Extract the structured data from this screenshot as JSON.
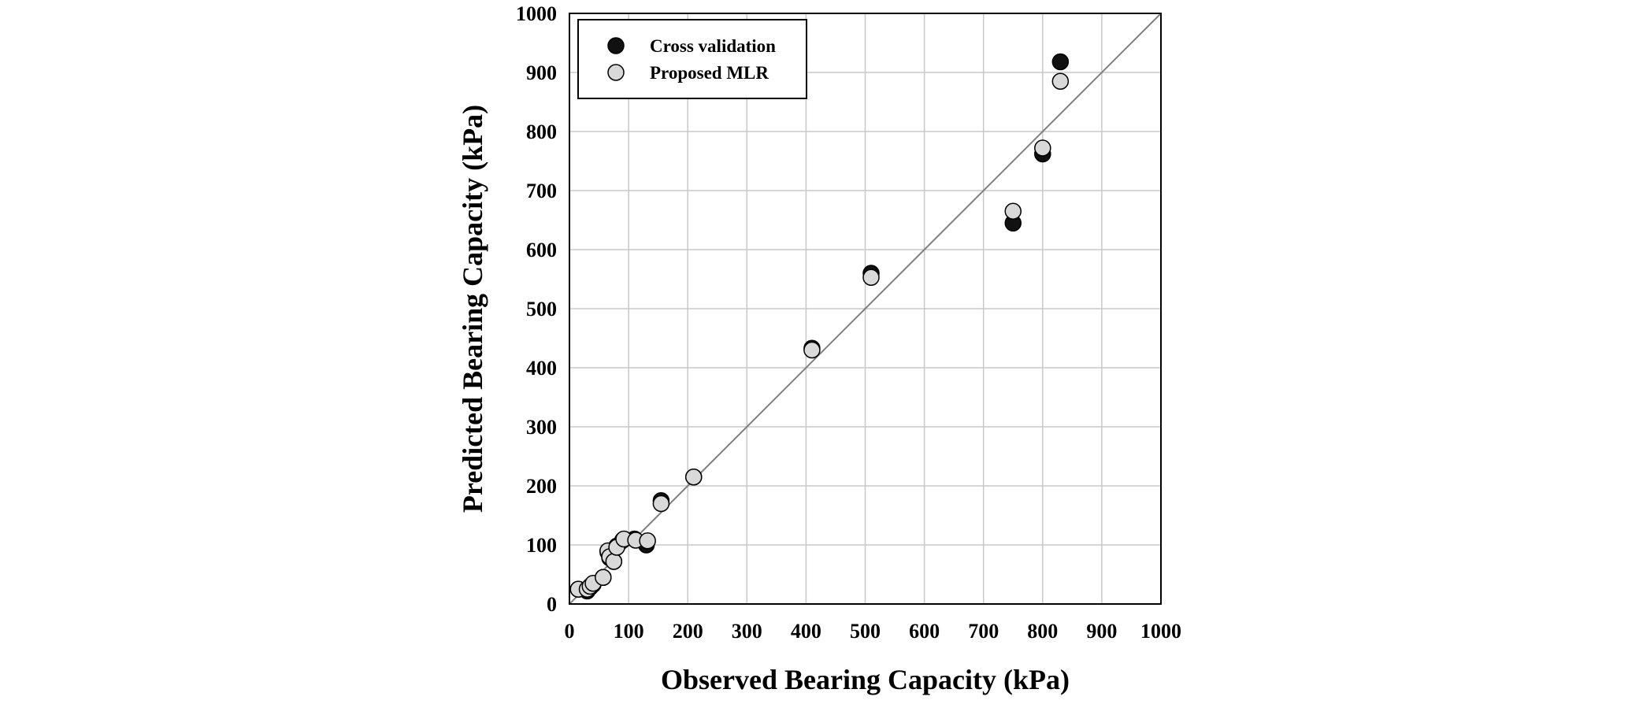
{
  "chart_data": {
    "type": "scatter",
    "xlabel": "Observed Bearing Capacity (kPa)",
    "ylabel": "Predicted Bearing Capacity (kPa)",
    "xlim": [
      0,
      1000
    ],
    "ylim": [
      0,
      1000
    ],
    "x_ticks": [
      "0",
      "100",
      "200",
      "300",
      "400",
      "500",
      "600",
      "700",
      "800",
      "900",
      "1000"
    ],
    "y_ticks": [
      "0",
      "100",
      "200",
      "300",
      "400",
      "500",
      "600",
      "700",
      "800",
      "900",
      "1000"
    ],
    "grid": true,
    "legend_position": "top-left",
    "reference_line": "y = x",
    "colors": {
      "cross_validation": "#111111",
      "proposed_mlr": "#d9d9d9",
      "grid": "#c8c8c8",
      "reference_line": "#808080"
    },
    "series": [
      {
        "name": "Cross validation",
        "points": [
          {
            "x": 15,
            "y": 25
          },
          {
            "x": 30,
            "y": 22
          },
          {
            "x": 35,
            "y": 28
          },
          {
            "x": 40,
            "y": 33
          },
          {
            "x": 57,
            "y": 45
          },
          {
            "x": 65,
            "y": 88
          },
          {
            "x": 68,
            "y": 78
          },
          {
            "x": 75,
            "y": 72
          },
          {
            "x": 80,
            "y": 98
          },
          {
            "x": 90,
            "y": 108
          },
          {
            "x": 110,
            "y": 110
          },
          {
            "x": 130,
            "y": 100
          },
          {
            "x": 155,
            "y": 175
          },
          {
            "x": 210,
            "y": 215
          },
          {
            "x": 410,
            "y": 433
          },
          {
            "x": 510,
            "y": 560
          },
          {
            "x": 750,
            "y": 645
          },
          {
            "x": 800,
            "y": 762
          },
          {
            "x": 830,
            "y": 918
          }
        ]
      },
      {
        "name": "Proposed MLR",
        "points": [
          {
            "x": 15,
            "y": 25
          },
          {
            "x": 30,
            "y": 25
          },
          {
            "x": 35,
            "y": 30
          },
          {
            "x": 40,
            "y": 35
          },
          {
            "x": 57,
            "y": 45
          },
          {
            "x": 65,
            "y": 90
          },
          {
            "x": 68,
            "y": 80
          },
          {
            "x": 75,
            "y": 72
          },
          {
            "x": 80,
            "y": 96
          },
          {
            "x": 92,
            "y": 110
          },
          {
            "x": 112,
            "y": 108
          },
          {
            "x": 132,
            "y": 107
          },
          {
            "x": 155,
            "y": 170
          },
          {
            "x": 210,
            "y": 215
          },
          {
            "x": 410,
            "y": 430
          },
          {
            "x": 510,
            "y": 553
          },
          {
            "x": 750,
            "y": 665
          },
          {
            "x": 800,
            "y": 772
          },
          {
            "x": 830,
            "y": 885
          }
        ]
      }
    ]
  }
}
